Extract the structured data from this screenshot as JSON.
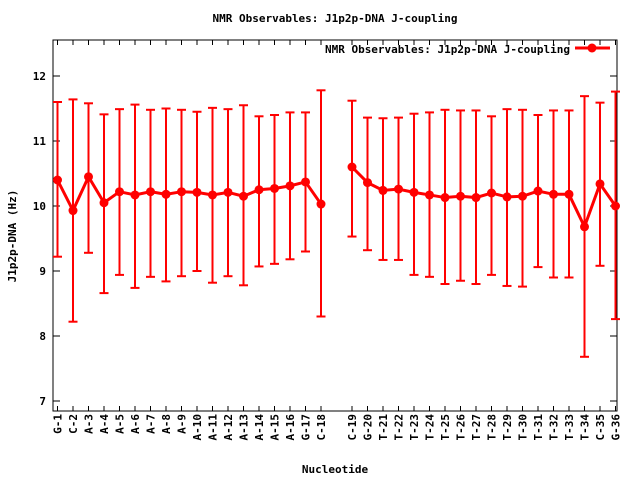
{
  "chart_data": {
    "type": "scatter",
    "title": "NMR Observables: J1p2p-DNA J-coupling",
    "legend_label": "NMR Observables: J1p2p-DNA J-coupling",
    "legend_position": "top-right-inside",
    "xlabel": "Nucleotide",
    "ylabel": "J1p2p-DNA (Hz)",
    "ylim": [
      6.85,
      12.55
    ],
    "yticks": [
      7,
      8,
      9,
      10,
      11,
      12
    ],
    "grid": false,
    "marker": "filled-circle-with-error-bars",
    "series_color": "#ff0000",
    "axis_color": "#000000",
    "background": "#ffffff",
    "xtick_rotation_deg": 90,
    "gap_after_category": "C-18",
    "categories": [
      "G-1",
      "C-2",
      "A-3",
      "A-4",
      "A-5",
      "A-6",
      "A-7",
      "A-8",
      "A-9",
      "A-10",
      "A-11",
      "A-12",
      "A-13",
      "A-14",
      "A-15",
      "A-16",
      "G-17",
      "C-18",
      "C-19",
      "G-20",
      "T-21",
      "T-22",
      "T-23",
      "T-24",
      "T-25",
      "T-26",
      "T-27",
      "T-28",
      "T-29",
      "T-30",
      "T-31",
      "T-32",
      "T-33",
      "T-34",
      "C-35",
      "G-36"
    ],
    "values": [
      10.4,
      9.93,
      10.45,
      10.05,
      10.22,
      10.17,
      10.22,
      10.18,
      10.22,
      10.21,
      10.17,
      10.21,
      10.15,
      10.25,
      10.27,
      10.31,
      10.37,
      10.03,
      10.6,
      10.36,
      10.24,
      10.26,
      10.21,
      10.17,
      10.13,
      10.15,
      10.13,
      10.2,
      10.14,
      10.15,
      10.23,
      10.18,
      10.18,
      9.68,
      10.34,
      10.0
    ],
    "err_low": [
      9.22,
      8.22,
      9.28,
      8.66,
      8.94,
      8.74,
      8.91,
      8.84,
      8.92,
      9.0,
      8.82,
      8.92,
      8.78,
      9.07,
      9.11,
      9.18,
      9.3,
      8.3,
      9.53,
      9.32,
      9.17,
      9.17,
      8.94,
      8.91,
      8.8,
      8.85,
      8.8,
      8.94,
      8.77,
      8.76,
      9.06,
      8.9,
      8.9,
      7.68,
      9.08,
      8.26
    ],
    "err_high": [
      11.6,
      11.64,
      11.58,
      11.41,
      11.49,
      11.56,
      11.48,
      11.5,
      11.48,
      11.45,
      11.51,
      11.49,
      11.55,
      11.38,
      11.4,
      11.44,
      11.44,
      11.78,
      11.62,
      11.36,
      11.35,
      11.36,
      11.42,
      11.44,
      11.48,
      11.47,
      11.47,
      11.38,
      11.49,
      11.48,
      11.4,
      11.47,
      11.47,
      11.69,
      11.59,
      11.76
    ]
  }
}
